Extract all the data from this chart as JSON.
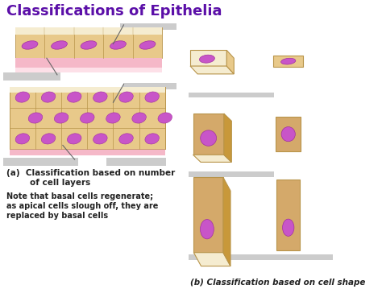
{
  "title": "Classifications of Epithelia",
  "title_color": "#5B0FA8",
  "title_fontsize": 13,
  "bg_color": "#FFFFFF",
  "cell_tan": "#D4A96A",
  "cell_tan_light": "#E8C98A",
  "cell_tan_top": "#F5ECD0",
  "nucleus_color": "#C855C8",
  "nucleus_dark": "#A030A0",
  "pink_layer": "#F5B8C8",
  "pink_light": "#FDE0E8",
  "label_a": "(a)  Classification based on number\n        of cell layers",
  "label_b": "(b) Classification based on cell shape",
  "note_text": "Note that basal cells regenerate;\nas apical cells slough off, they are\nreplaced by basal cells",
  "gray_tab": "#CCCCCC",
  "text_color": "#333333",
  "dark_color": "#222222",
  "side_tan": "#C8983A"
}
